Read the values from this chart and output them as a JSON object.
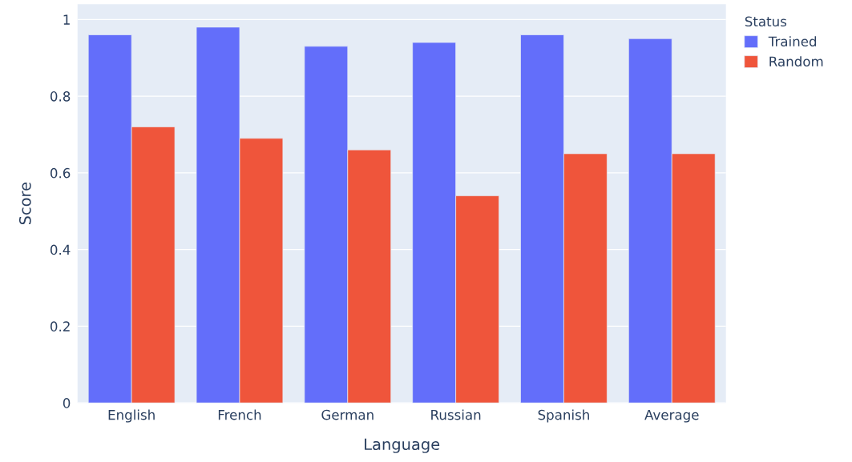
{
  "chart_data": {
    "type": "bar",
    "xlabel": "Language",
    "ylabel": "Score",
    "legend_title": "Status",
    "categories": [
      "English",
      "French",
      "German",
      "Russian",
      "Spanish",
      "Average"
    ],
    "series": [
      {
        "name": "Trained",
        "color": "#636efa",
        "values": [
          0.96,
          0.98,
          0.93,
          0.94,
          0.96,
          0.95
        ]
      },
      {
        "name": "Random",
        "color": "#ef553b",
        "values": [
          0.72,
          0.69,
          0.66,
          0.54,
          0.65,
          0.65
        ]
      }
    ],
    "ylim": [
      0,
      1.04
    ],
    "yticks": [
      0,
      0.2,
      0.4,
      0.6,
      0.8,
      1
    ],
    "grid": "y",
    "legend": "top right"
  }
}
